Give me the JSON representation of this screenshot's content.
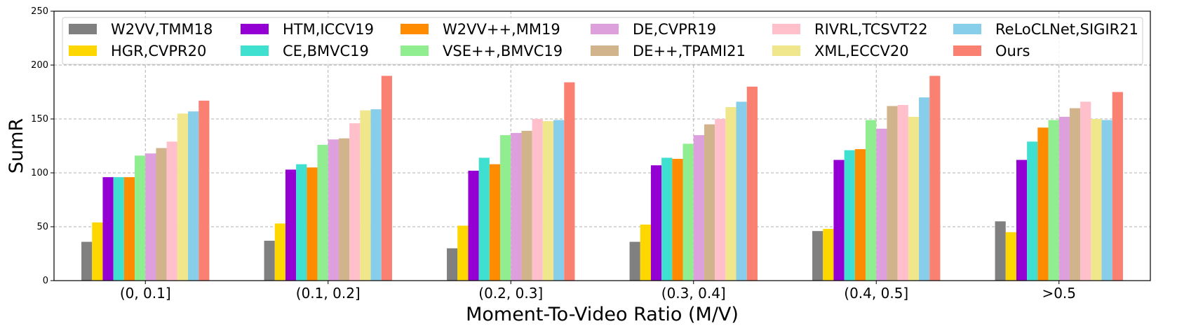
{
  "chart_data": {
    "type": "bar",
    "title": "",
    "xlabel": "Moment-To-Video Ratio (M/V)",
    "ylabel": "SumR",
    "ylim": [
      0,
      250
    ],
    "yticks": [
      0,
      50,
      100,
      150,
      200,
      250
    ],
    "grid": true,
    "legend_position": "top",
    "categories": [
      "(0, 0.1]",
      "(0.1, 0.2]",
      "(0.2, 0.3]",
      "(0.3, 0.4]",
      "(0.4, 0.5]",
      ">0.5"
    ],
    "series": [
      {
        "name": "W2VV,TMM18",
        "color": "#808080",
        "values": [
          36,
          37,
          30,
          36,
          46,
          55
        ]
      },
      {
        "name": "HGR,CVPR20",
        "color": "#FFD700",
        "values": [
          54,
          53,
          51,
          52,
          48,
          45
        ]
      },
      {
        "name": "HTM,ICCV19",
        "color": "#9400D3",
        "values": [
          96,
          103,
          102,
          107,
          112,
          112
        ]
      },
      {
        "name": "CE,BMVC19",
        "color": "#40E0D0",
        "values": [
          96,
          108,
          114,
          114,
          121,
          129
        ]
      },
      {
        "name": "W2VV++,MM19",
        "color": "#FF8C00",
        "values": [
          96,
          105,
          108,
          113,
          122,
          142
        ]
      },
      {
        "name": "VSE++,BMVC19",
        "color": "#90EE90",
        "values": [
          116,
          126,
          135,
          127,
          149,
          149
        ]
      },
      {
        "name": "DE,CVPR19",
        "color": "#DDA0DD",
        "values": [
          118,
          131,
          137,
          135,
          141,
          152
        ]
      },
      {
        "name": "DE++,TPAMI21",
        "color": "#D2B48C",
        "values": [
          123,
          132,
          139,
          145,
          162,
          160
        ]
      },
      {
        "name": "RIVRL,TCSVT22",
        "color": "#FFC0CB",
        "values": [
          129,
          146,
          150,
          150,
          163,
          166
        ]
      },
      {
        "name": "XML,ECCV20",
        "color": "#F0E68C",
        "values": [
          155,
          158,
          148,
          161,
          152,
          150
        ]
      },
      {
        "name": "ReLoCLNet,SIGIR21",
        "color": "#87CEEB",
        "values": [
          157,
          159,
          149,
          166,
          170,
          149
        ]
      },
      {
        "name": "Ours",
        "color": "#FA8072",
        "values": [
          167,
          190,
          184,
          180,
          190,
          175
        ]
      }
    ]
  }
}
